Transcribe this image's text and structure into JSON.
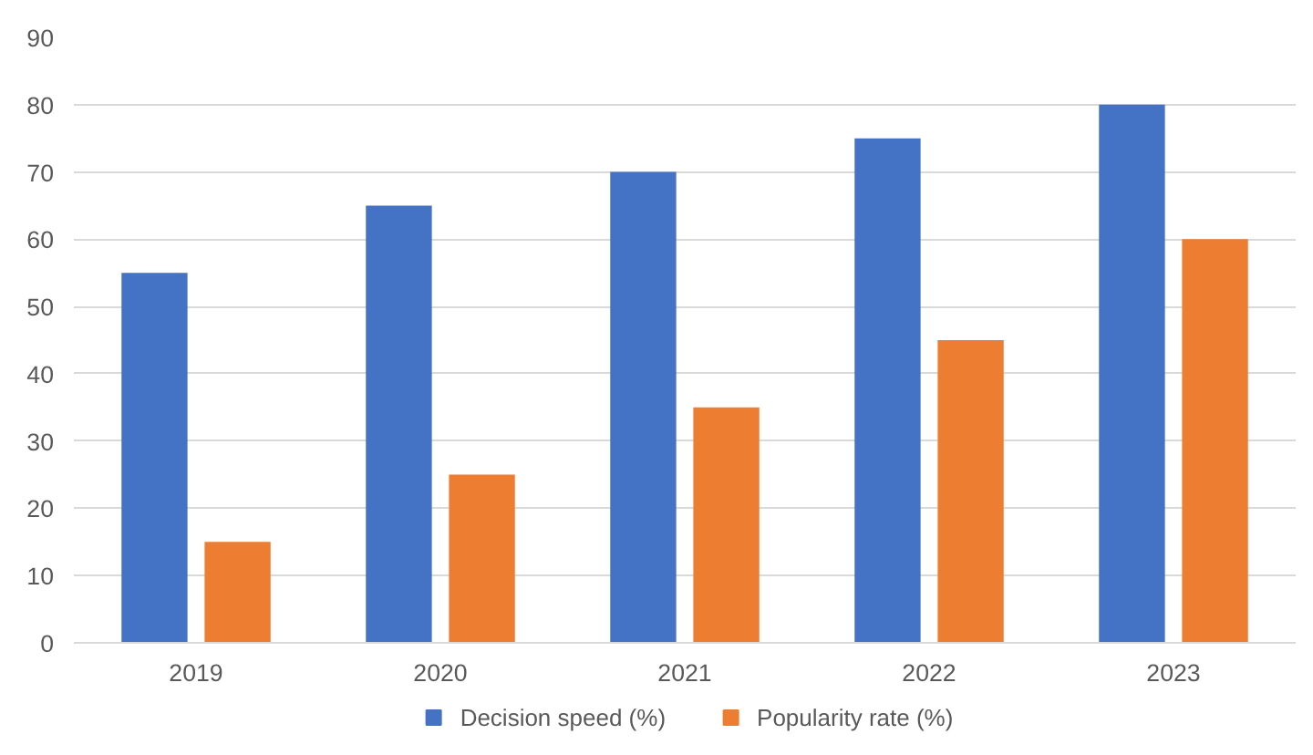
{
  "chart_data": {
    "type": "bar",
    "categories": [
      "2019",
      "2020",
      "2021",
      "2022",
      "2023"
    ],
    "series": [
      {
        "name": "Decision speed (%)",
        "color": "#4472c4",
        "values": [
          55,
          65,
          70,
          75,
          80
        ]
      },
      {
        "name": "Popularity rate (%)",
        "color": "#ed7d31",
        "values": [
          15,
          25,
          35,
          45,
          60
        ]
      }
    ],
    "ylim": [
      0,
      90
    ],
    "yticks": [
      0,
      10,
      20,
      30,
      40,
      50,
      60,
      70,
      80,
      90
    ],
    "grid": "y",
    "legend": "bottom"
  }
}
